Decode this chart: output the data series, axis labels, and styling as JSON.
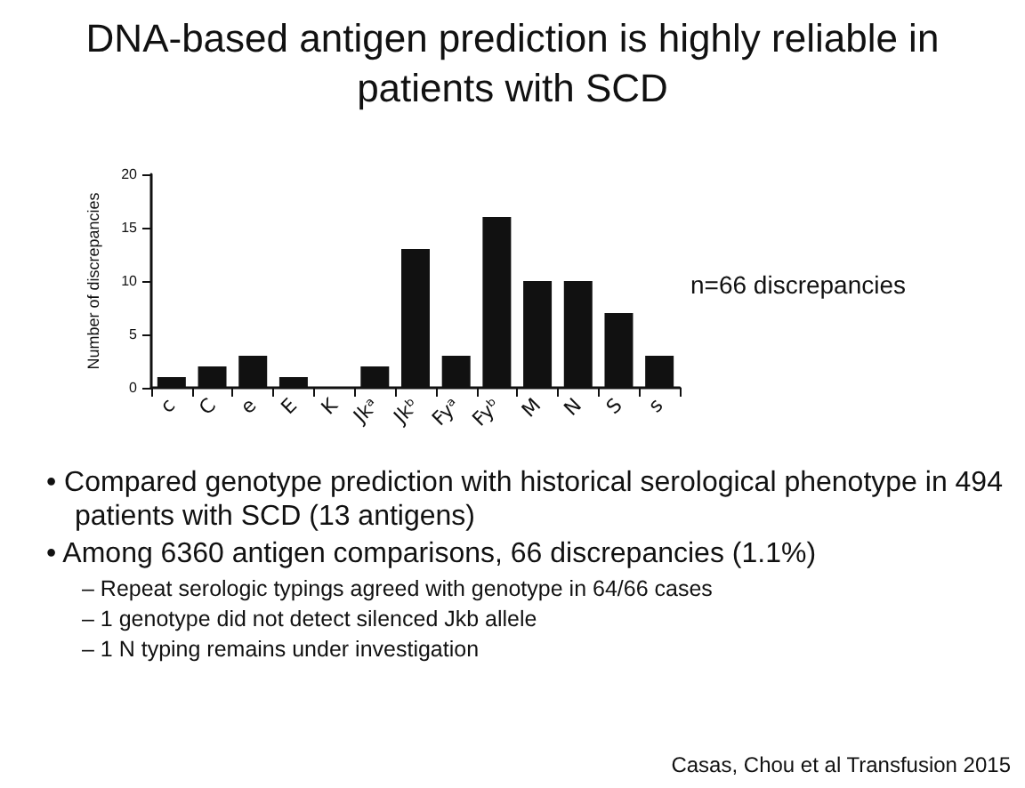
{
  "chart_data": {
    "type": "bar",
    "title": "DNA-based antigen prediction is highly reliable in patients with SCD",
    "categories": [
      "c",
      "C",
      "e",
      "E",
      "K",
      "Jkᵃ",
      "Jkᵇ",
      "Fyᵃ",
      "Fyᵇ",
      "M",
      "N",
      "S",
      "s"
    ],
    "values": [
      1,
      2,
      3,
      1,
      0,
      2,
      13,
      3,
      16,
      10,
      10,
      7,
      3
    ],
    "color": "#111111",
    "ylabel": "Number of discrepancies",
    "ylim": [
      0,
      20
    ],
    "yticks": [
      0,
      5,
      10,
      15,
      20
    ],
    "grid": false,
    "annotations": [
      "n=66 discrepancies",
      "• Compared genotype prediction with historical serological phenotype in 494 patients with SCD (13 antigens)",
      "• Among 6360 antigen comparisons, 66 discrepancies (1.1%)",
      "– Repeat serologic typings agreed with genotype in 64/66 cases",
      "– 1 genotype did not detect silenced Jkb allele",
      "– 1 N typing remains under investigation",
      "Casas, Chou et al Transfusion 2015"
    ]
  }
}
